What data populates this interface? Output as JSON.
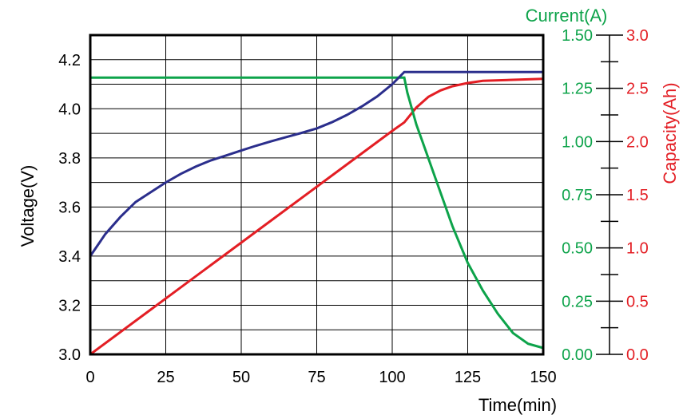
{
  "chart_data": {
    "type": "line",
    "title": "",
    "colors": {
      "voltage": "#2b2e8c",
      "current": "#0da34a",
      "capacity": "#e31e24",
      "grid": "#000000"
    },
    "grid": true,
    "x_axis": {
      "label": "Time(min)",
      "range": [
        0,
        150
      ],
      "ticks": [
        0,
        25,
        50,
        75,
        100,
        125,
        150
      ],
      "tick_labels": [
        "0",
        "25",
        "50",
        "75",
        "100",
        "125",
        "150"
      ]
    },
    "y_axes": {
      "voltage": {
        "label": "Voltage(V)",
        "range": [
          3.0,
          4.3
        ],
        "ticks": [
          3.0,
          3.2,
          3.4,
          3.6,
          3.8,
          4.0,
          4.2
        ],
        "tick_labels": [
          "3.0",
          "3.2",
          "3.4",
          "3.6",
          "3.8",
          "4.0",
          "4.2"
        ]
      },
      "current": {
        "label": "Current(A)",
        "range": [
          0.0,
          1.5
        ],
        "ticks": [
          0.0,
          0.25,
          0.5,
          0.75,
          1.0,
          1.25,
          1.5
        ],
        "tick_labels": [
          "0.00",
          "0.25",
          "0.50",
          "0.75",
          "1.00",
          "1.25",
          "1.50"
        ]
      },
      "capacity": {
        "label": "Capacity(Ah)",
        "range": [
          0.0,
          3.0
        ],
        "ticks": [
          0.0,
          0.5,
          1.0,
          1.5,
          2.0,
          2.5,
          3.0
        ],
        "tick_labels": [
          "0.0",
          "0.5",
          "1.0",
          "1.5",
          "2.0",
          "2.5",
          "3.0"
        ]
      }
    },
    "series": [
      {
        "key": "voltage",
        "axis": "voltage",
        "x": [
          0,
          5,
          10,
          15,
          20,
          25,
          30,
          35,
          40,
          45,
          50,
          55,
          60,
          65,
          70,
          75,
          80,
          85,
          90,
          95,
          100,
          104,
          110,
          120,
          130,
          140,
          150
        ],
        "y": [
          3.4,
          3.49,
          3.56,
          3.62,
          3.66,
          3.7,
          3.735,
          3.765,
          3.79,
          3.81,
          3.83,
          3.85,
          3.868,
          3.885,
          3.902,
          3.92,
          3.945,
          3.975,
          4.01,
          4.05,
          4.1,
          4.15,
          4.15,
          4.15,
          4.15,
          4.15,
          4.15
        ]
      },
      {
        "key": "current",
        "axis": "current",
        "x": [
          0,
          104,
          105,
          108,
          110,
          115,
          120,
          125,
          130,
          135,
          140,
          145,
          150
        ],
        "y": [
          1.3,
          1.3,
          1.23,
          1.08,
          1.0,
          0.8,
          0.6,
          0.43,
          0.3,
          0.19,
          0.1,
          0.05,
          0.03
        ]
      },
      {
        "key": "capacity",
        "axis": "capacity",
        "x": [
          0,
          20,
          40,
          60,
          80,
          100,
          104,
          108,
          112,
          116,
          120,
          125,
          130,
          140,
          150
        ],
        "y": [
          0.0,
          0.42,
          0.84,
          1.26,
          1.68,
          2.1,
          2.18,
          2.32,
          2.42,
          2.48,
          2.52,
          2.55,
          2.57,
          2.58,
          2.59
        ]
      }
    ]
  }
}
